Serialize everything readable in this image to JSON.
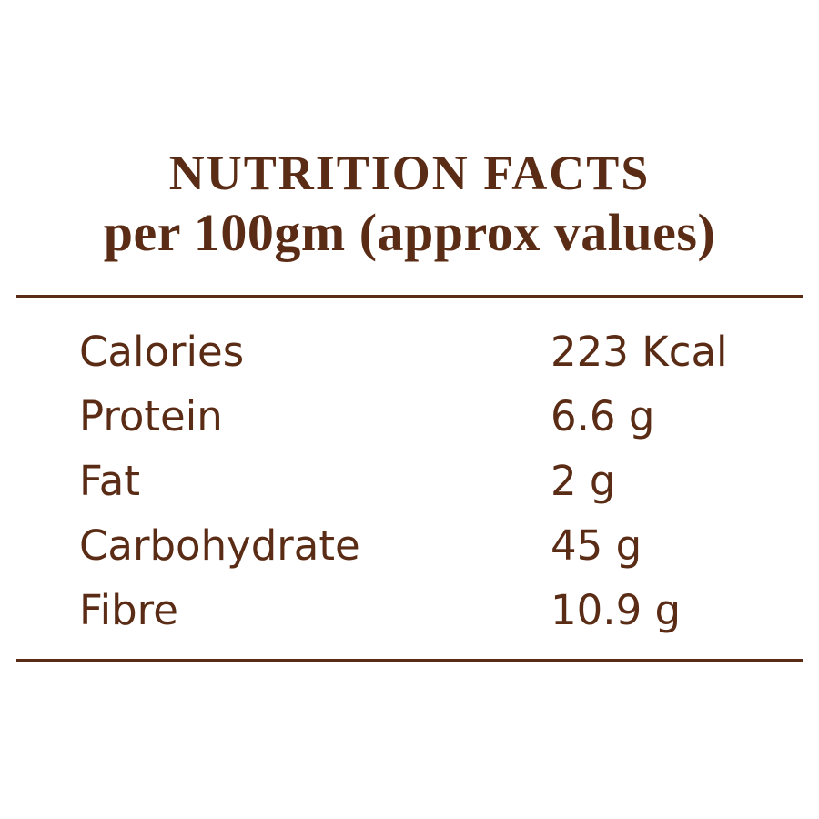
{
  "page": {
    "background_color": "#ffffff",
    "text_color": "#5b2c15",
    "rule_color": "#5b2c15"
  },
  "header": {
    "title": "NUTRITION FACTS",
    "subtitle": "per 100gm (approx values)"
  },
  "table": {
    "rows": [
      {
        "label": "Calories",
        "value": "223 Kcal"
      },
      {
        "label": "Protein",
        "value": "6.6 g"
      },
      {
        "label": "Fat",
        "value": "2 g"
      },
      {
        "label": "Carbohydrate",
        "value": "45 g"
      },
      {
        "label": "Fibre",
        "value": "10.9 g"
      }
    ]
  }
}
